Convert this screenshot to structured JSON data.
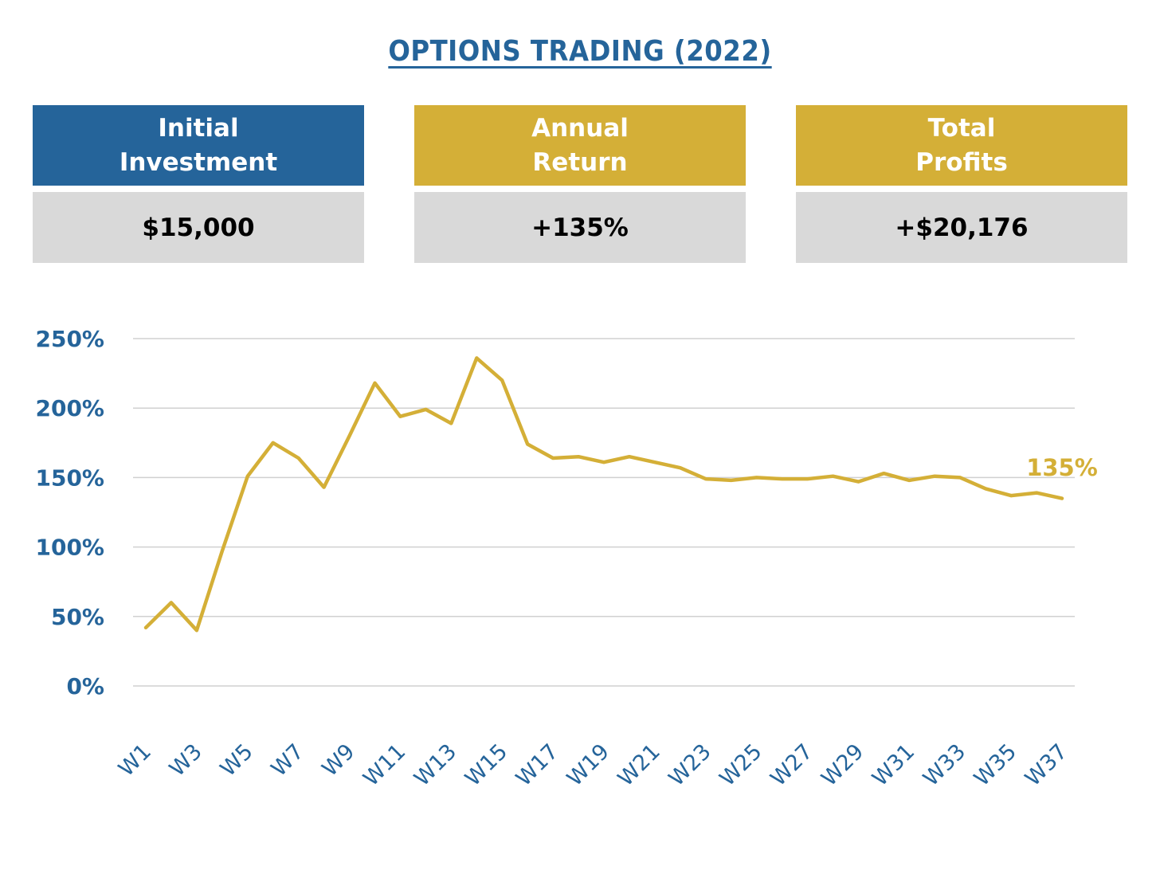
{
  "header": {
    "title": "OPTIONS TRADING (2022)"
  },
  "cards": [
    {
      "line1": "Initial",
      "line2": "Investment",
      "value": "$15,000",
      "color": "#25649a"
    },
    {
      "line1": "Annual",
      "line2": "Return",
      "value": "+135%",
      "color": "#d4af37"
    },
    {
      "line1": "Total",
      "line2": "Profits",
      "value": "+$20,176",
      "color": "#d4af37"
    }
  ],
  "colors": {
    "axis_text": "#25649a",
    "line": "#d4af37",
    "grid": "#d0d0d0",
    "value_box": "#d9d9d9"
  },
  "chart_data": {
    "type": "line",
    "title": "",
    "xlabel": "",
    "ylabel": "",
    "ylim": [
      0,
      250
    ],
    "yticks": [
      "0%",
      "50%",
      "100%",
      "150%",
      "200%",
      "250%"
    ],
    "grid": true,
    "x": [
      "W1",
      "W2",
      "W3",
      "W4",
      "W5",
      "W6",
      "W7",
      "W8",
      "W9",
      "W10",
      "W11",
      "W12",
      "W13",
      "W14",
      "W15",
      "W16",
      "W17",
      "W18",
      "W19",
      "W20",
      "W21",
      "W22",
      "W23",
      "W24",
      "W25",
      "W26",
      "W27",
      "W28",
      "W29",
      "W30",
      "W31",
      "W32",
      "W33",
      "W34",
      "W35",
      "W36",
      "W37"
    ],
    "xtick_labels": [
      "W1",
      "W3",
      "W5",
      "W7",
      "W9",
      "W11",
      "W13",
      "W15",
      "W17",
      "W19",
      "W21",
      "W23",
      "W25",
      "W27",
      "W29",
      "W31",
      "W33",
      "W35",
      "W37"
    ],
    "series": [
      {
        "values": [
          42,
          60,
          40,
          97,
          151,
          175,
          164,
          143,
          180,
          218,
          194,
          199,
          189,
          236,
          220,
          174,
          164,
          165,
          161,
          165,
          161,
          157,
          149,
          148,
          150,
          149,
          149,
          151,
          147,
          153,
          148,
          151,
          150,
          142,
          137,
          139,
          135
        ]
      }
    ],
    "end_label": "135%"
  }
}
